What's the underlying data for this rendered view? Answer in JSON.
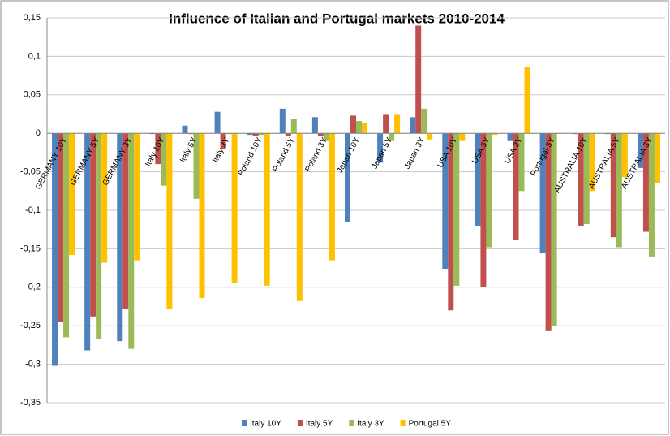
{
  "chart_data": {
    "type": "bar",
    "title": "Influence of Italian and Portugal markets 2010-2014",
    "categories": [
      "GERMANY 10Y",
      "GERMANY 5Y",
      "GERMANY 3Y",
      "Italy 10Y",
      "Italy 5Y",
      "Italy 3Y",
      "Poland 10Y",
      "Poland 5Y",
      "Poland 3Y",
      "Japan 10Y",
      "Japan 5Y",
      "Japan 3Y",
      "USA 10Y",
      "USA 5Y",
      "USA 2Y",
      "Portugal 5Y",
      "AUSTRALIA 10Y",
      "AUSTRALIA 5Y",
      "AUSTRALIA 3Y"
    ],
    "series": [
      {
        "name": "Italy 10Y",
        "color": "#4f81bd",
        "values": [
          -0.302,
          -0.282,
          -0.27,
          -0.001,
          0.01,
          0.028,
          -0.002,
          0.032,
          0.021,
          -0.115,
          -0.038,
          0.021,
          -0.176,
          -0.12,
          -0.01,
          -0.156,
          -0.001,
          -0.001,
          -0.045
        ]
      },
      {
        "name": "Italy 5Y",
        "color": "#c0504d",
        "values": [
          -0.245,
          -0.238,
          -0.228,
          -0.04,
          -0.001,
          -0.02,
          -0.003,
          -0.003,
          -0.003,
          0.023,
          0.024,
          0.14,
          -0.23,
          -0.2,
          -0.138,
          -0.257,
          -0.12,
          -0.135,
          -0.128
        ]
      },
      {
        "name": "Italy 3Y",
        "color": "#9bbb59",
        "values": [
          -0.265,
          -0.267,
          -0.28,
          -0.068,
          -0.085,
          -0.001,
          -0.002,
          0.019,
          -0.01,
          0.016,
          -0.01,
          0.032,
          -0.198,
          -0.148,
          -0.075,
          -0.25,
          -0.118,
          -0.148,
          -0.16
        ]
      },
      {
        "name": "Portugal 5Y",
        "color": "#ffc000",
        "values": [
          -0.158,
          -0.168,
          -0.165,
          -0.228,
          -0.214,
          -0.195,
          -0.198,
          -0.218,
          -0.165,
          0.014,
          0.024,
          -0.008,
          -0.01,
          -0.002,
          0.086,
          0,
          -0.075,
          -0.057,
          -0.065
        ]
      }
    ],
    "ylim": [
      -0.35,
      0.15
    ],
    "yticks": [
      {
        "value": -0.35,
        "label": "-0,35"
      },
      {
        "value": -0.3,
        "label": "-0,3"
      },
      {
        "value": -0.25,
        "label": "-0,25"
      },
      {
        "value": -0.2,
        "label": "-0,2"
      },
      {
        "value": -0.15,
        "label": "-0,15"
      },
      {
        "value": -0.1,
        "label": "-0,1"
      },
      {
        "value": -0.05,
        "label": "-0,05"
      },
      0,
      {
        "value": 0.05,
        "label": "0,05"
      },
      {
        "value": 0.1,
        "label": "0,1"
      },
      {
        "value": 0.15,
        "label": "0,15"
      }
    ],
    "grid": true,
    "legend": "bottom"
  }
}
